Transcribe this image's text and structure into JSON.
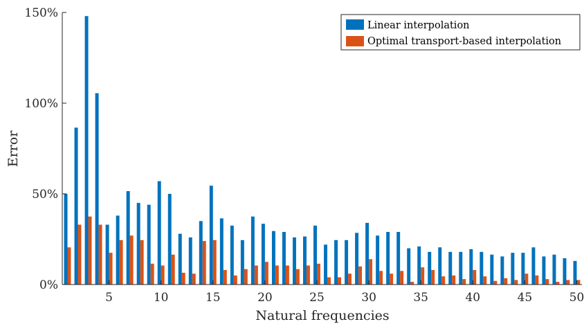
{
  "chart_data": {
    "type": "bar",
    "title": "",
    "xlabel": "Natural frequencies",
    "ylabel": "Error",
    "xlim": [
      0.5,
      50.5
    ],
    "ylim": [
      0,
      150
    ],
    "xticks": [
      5,
      10,
      15,
      20,
      25,
      30,
      35,
      40,
      45,
      50
    ],
    "yticks": [
      0,
      50,
      100,
      150
    ],
    "ytick_labels": [
      "0%",
      "50%",
      "100%",
      "150%"
    ],
    "grid": false,
    "legend_position": "top-right",
    "x": [
      1,
      2,
      3,
      4,
      5,
      6,
      7,
      8,
      9,
      10,
      11,
      12,
      13,
      14,
      15,
      16,
      17,
      18,
      19,
      20,
      21,
      22,
      23,
      24,
      25,
      26,
      27,
      28,
      29,
      30,
      31,
      32,
      33,
      34,
      35,
      36,
      37,
      38,
      39,
      40,
      41,
      42,
      43,
      44,
      45,
      46,
      47,
      48,
      49,
      50
    ],
    "series": [
      {
        "name": "Linear interpolation",
        "color": "#0072BD",
        "values": [
          50,
          86.5,
          148,
          105.5,
          33,
          38,
          51.5,
          45,
          44,
          57,
          50,
          28,
          26,
          35,
          54.5,
          36.5,
          32.5,
          24.5,
          37.5,
          33.5,
          29.5,
          29,
          26,
          26.5,
          32.5,
          22,
          24.5,
          24.5,
          28.5,
          34,
          27,
          29,
          29,
          20,
          21,
          18,
          20.5,
          18,
          18,
          19.5,
          18,
          16.5,
          15.5,
          17.5,
          17.5,
          20.5,
          15.5,
          16.5,
          14.5,
          13
        ]
      },
      {
        "name": "Optimal transport-based interpolation",
        "color": "#D95319",
        "values": [
          20.5,
          33,
          37.5,
          33,
          17.5,
          24.5,
          27,
          24.5,
          11.5,
          10.5,
          16.5,
          6.5,
          6,
          24,
          24.5,
          8,
          5,
          8.5,
          10.5,
          12.5,
          10.5,
          10.5,
          8.5,
          10.5,
          11.5,
          4,
          4,
          6,
          10,
          14,
          7.5,
          6,
          7.5,
          1.5,
          9.5,
          8,
          4.5,
          5,
          3,
          8,
          4.5,
          2,
          3.5,
          2.5,
          6,
          5,
          3,
          1.5,
          2.5,
          2.5
        ]
      }
    ]
  }
}
